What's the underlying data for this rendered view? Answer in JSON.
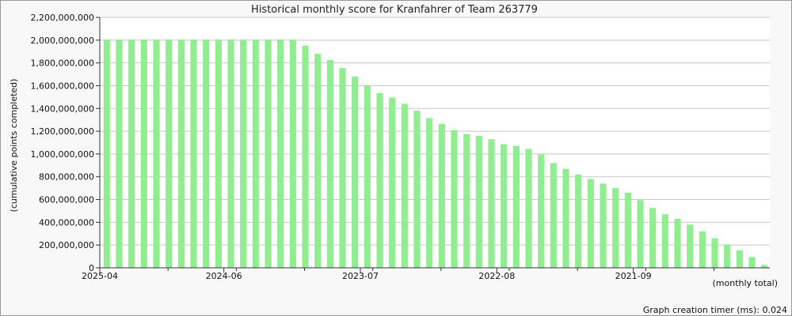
{
  "chart_data": {
    "type": "bar",
    "title": "Historical monthly score for Kranfahrer of Team 263779",
    "ylabel": "(cumulative points completed)",
    "xlabel": "(monthly total)",
    "footer": "Graph creation timer (ms): 0.024",
    "ylim": [
      0,
      2200000000
    ],
    "yticks": [
      "0",
      "200,000,000",
      "400,000,000",
      "600,000,000",
      "800,000,000",
      "1,000,000,000",
      "1,200,000,000",
      "1,400,000,000",
      "1,600,000,000",
      "1,800,000,000",
      "2,000,000,000",
      "2,200,000,000"
    ],
    "ytick_values": [
      0,
      200000000,
      400000000,
      600000000,
      800000000,
      1000000000,
      1200000000,
      1400000000,
      1600000000,
      1800000000,
      2000000000,
      2200000000
    ],
    "x_tick_labels": [
      {
        "label": "2025-04",
        "index": 0
      },
      {
        "label": "2024-06",
        "index": 10
      },
      {
        "label": "2023-07",
        "index": 21
      },
      {
        "label": "2022-08",
        "index": 32
      },
      {
        "label": "2021-09",
        "index": 43
      }
    ],
    "bar_color": "#90ee90",
    "grid": true,
    "values": [
      2005000000,
      2005000000,
      2005000000,
      2005000000,
      2005000000,
      2005000000,
      2005000000,
      2005000000,
      2005000000,
      2005000000,
      2005000000,
      2005000000,
      2005000000,
      2005000000,
      2005000000,
      2005000000,
      1950000000,
      1880000000,
      1825000000,
      1755000000,
      1680000000,
      1600000000,
      1535000000,
      1495000000,
      1440000000,
      1380000000,
      1315000000,
      1265000000,
      1210000000,
      1175000000,
      1160000000,
      1130000000,
      1085000000,
      1070000000,
      1045000000,
      995000000,
      920000000,
      870000000,
      820000000,
      780000000,
      740000000,
      700000000,
      660000000,
      595000000,
      525000000,
      470000000,
      430000000,
      380000000,
      320000000,
      260000000,
      205000000,
      155000000,
      95000000,
      25000000
    ]
  }
}
